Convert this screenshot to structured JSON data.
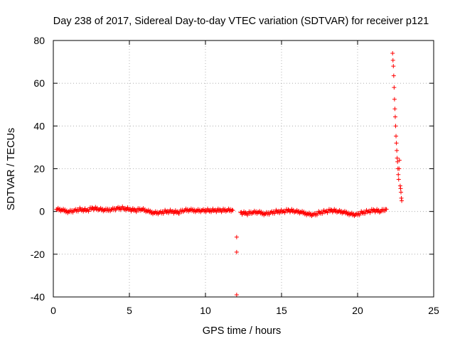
{
  "chart_data": {
    "type": "scatter",
    "title": "Day 238 of 2017, Sidereal Day-to-day VTEC variation (SDTVAR) for receiver p121",
    "xlabel": "GPS time / hours",
    "ylabel": "SDTVAR / TECUs",
    "xlim": [
      0,
      25
    ],
    "ylim": [
      -40,
      80
    ],
    "xticks": [
      0,
      5,
      10,
      15,
      20,
      25
    ],
    "yticks": [
      -40,
      -20,
      0,
      20,
      40,
      60,
      80
    ],
    "grid": true,
    "marker": "+",
    "series_color": "#ff0000",
    "series": [
      {
        "name": "SDTVAR",
        "x": [
          0.2,
          0.6,
          1.0,
          1.4,
          1.8,
          2.2,
          2.6,
          3.0,
          3.4,
          3.8,
          4.2,
          4.6,
          5.0,
          5.4,
          5.8,
          6.2,
          6.6,
          7.0,
          7.4,
          7.8,
          8.2,
          8.6,
          9.0,
          9.4,
          9.8,
          10.2,
          10.6,
          11.0,
          11.4,
          11.8,
          12.05,
          12.05,
          12.05,
          12.3,
          12.7,
          13.1,
          13.5,
          13.9,
          14.3,
          14.7,
          15.1,
          15.5,
          15.9,
          16.3,
          16.7,
          17.1,
          17.5,
          17.9,
          18.3,
          18.7,
          19.1,
          19.5,
          19.9,
          20.3,
          20.7,
          21.1,
          21.5,
          21.9,
          22.3,
          22.35,
          22.4,
          22.45,
          22.5,
          22.55,
          22.6,
          22.65,
          22.7,
          22.75,
          22.8,
          22.85,
          22.9
        ],
        "y": [
          1,
          0.5,
          0,
          0.5,
          1,
          0.5,
          1.5,
          1,
          0.5,
          1,
          1.5,
          1.5,
          1,
          0.5,
          1,
          0,
          -0.5,
          -0.5,
          0,
          0,
          -0.5,
          0.5,
          0.5,
          0.5,
          0.5,
          0.5,
          0.5,
          0.5,
          0.5,
          0.5,
          -12,
          -19,
          -39,
          -0.5,
          -1,
          -0.5,
          -0.5,
          -1,
          -0.5,
          0,
          0,
          0.5,
          0,
          -0.5,
          -1,
          -1.5,
          -0.5,
          0,
          0.5,
          0,
          -0.5,
          -1,
          -1.5,
          -0.5,
          0,
          0.5,
          0,
          1,
          74,
          68,
          58,
          48,
          40,
          32,
          25,
          20,
          15,
          24,
          12,
          9,
          5
        ]
      }
    ]
  }
}
